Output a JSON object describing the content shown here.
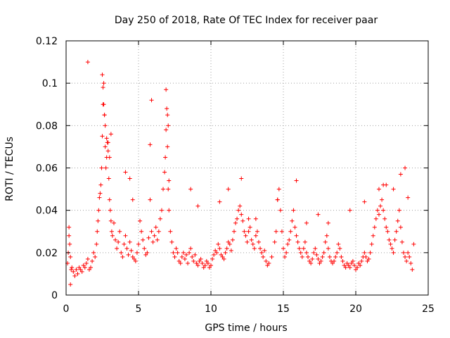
{
  "chart_data": {
    "type": "scatter",
    "title": "Day 250 of 2018, Rate Of TEC Index for receiver paar",
    "xlabel": "GPS time / hours",
    "ylabel": "ROTI / TECUs",
    "xlim": [
      0,
      25
    ],
    "ylim": [
      0,
      0.12
    ],
    "xticks": [
      0,
      5,
      10,
      15,
      20,
      25
    ],
    "xtick_labels": [
      "0",
      "5",
      "10",
      "15",
      "20",
      "25"
    ],
    "yticks": [
      0,
      0.02,
      0.04,
      0.06,
      0.08,
      0.1,
      0.12
    ],
    "ytick_labels": [
      "0",
      "0.02",
      "0.04",
      "0.06",
      "0.08",
      "0.1",
      "0.12"
    ],
    "grid": true,
    "marker": "plus",
    "color": "#ff0000",
    "series": [
      {
        "x": [
          0.1,
          0.15,
          0.2,
          0.25,
          0.3,
          0.35,
          0.4,
          0.5,
          0.6,
          0.7,
          0.8,
          0.9,
          1.0,
          1.1,
          1.2,
          1.3,
          1.4,
          1.5,
          1.6,
          1.7,
          1.8,
          1.9,
          2.0,
          2.1,
          2.15,
          2.2,
          2.25,
          2.3,
          2.35,
          2.4,
          2.45,
          2.5,
          2.55,
          2.6,
          2.65,
          2.7,
          2.75,
          2.8,
          2.85,
          2.9,
          2.95,
          3.0,
          3.05,
          3.1,
          3.15,
          3.2,
          3.3,
          3.4,
          3.5,
          3.6,
          3.7,
          3.8,
          3.9,
          4.0,
          4.1,
          4.2,
          4.3,
          4.4,
          4.5,
          4.6,
          4.7,
          4.8,
          4.9,
          5.0,
          5.1,
          5.2,
          5.3,
          5.4,
          5.5,
          5.6,
          5.7,
          5.8,
          5.9,
          6.0,
          6.1,
          6.2,
          6.3,
          6.4,
          6.5,
          6.6,
          6.7,
          6.8,
          6.85,
          6.9,
          6.95,
          7.0,
          7.05,
          7.1,
          7.2,
          7.3,
          7.4,
          7.5,
          7.6,
          7.7,
          7.8,
          7.9,
          8.0,
          8.1,
          8.2,
          8.3,
          8.4,
          8.5,
          8.6,
          8.7,
          8.8,
          8.9,
          9.0,
          9.1,
          9.2,
          9.3,
          9.4,
          9.5,
          9.6,
          9.7,
          9.8,
          9.9,
          10.0,
          10.1,
          10.2,
          10.3,
          10.4,
          10.5,
          10.6,
          10.7,
          10.8,
          10.9,
          11.0,
          11.1,
          11.2,
          11.3,
          11.4,
          11.5,
          11.6,
          11.7,
          11.8,
          11.9,
          12.0,
          12.1,
          12.2,
          12.3,
          12.4,
          12.5,
          12.6,
          12.7,
          12.8,
          12.9,
          13.0,
          13.1,
          13.2,
          13.3,
          13.4,
          13.5,
          13.6,
          13.7,
          13.8,
          13.9,
          14.0,
          14.2,
          14.4,
          14.5,
          14.6,
          14.7,
          14.8,
          14.9,
          15.0,
          15.1,
          15.2,
          15.3,
          15.4,
          15.5,
          15.6,
          15.7,
          15.8,
          15.9,
          16.0,
          16.1,
          16.2,
          16.3,
          16.4,
          16.5,
          16.6,
          16.7,
          16.8,
          16.9,
          17.0,
          17.1,
          17.2,
          17.3,
          17.4,
          17.5,
          17.6,
          17.7,
          17.8,
          17.9,
          18.0,
          18.1,
          18.2,
          18.3,
          18.4,
          18.5,
          18.6,
          18.7,
          18.8,
          18.9,
          19.0,
          19.1,
          19.2,
          19.3,
          19.4,
          19.5,
          19.6,
          19.7,
          19.8,
          19.9,
          20.0,
          20.1,
          20.2,
          20.3,
          20.4,
          20.5,
          20.6,
          20.7,
          20.8,
          20.9,
          21.0,
          21.1,
          21.2,
          21.3,
          21.4,
          21.5,
          21.6,
          21.7,
          21.8,
          21.9,
          22.0,
          22.1,
          22.2,
          22.3,
          22.4,
          22.5,
          22.6,
          22.7,
          22.8,
          22.9,
          23.0,
          23.1,
          23.2,
          23.3,
          23.4,
          23.5,
          23.6,
          23.7,
          23.8,
          23.9,
          24.0,
          0.2,
          0.3,
          1.5,
          2.5,
          2.55,
          2.6,
          2.65,
          2.7,
          2.8,
          2.9,
          3.0,
          3.1,
          5.8,
          5.9,
          6.9,
          7.0,
          7.05,
          7.1,
          12.1,
          14.6,
          15.9,
          21.9,
          22.1,
          23.1,
          23.4,
          4.1,
          4.4,
          4.6,
          8.6,
          9.1,
          10.6,
          11.2,
          12.6,
          13.1,
          16.6,
          17.4,
          18.1,
          19.6,
          20.6,
          21.6,
          22.6,
          23.6
        ],
        "y": [
          0.015,
          0.02,
          0.028,
          0.024,
          0.018,
          0.012,
          0.013,
          0.011,
          0.009,
          0.012,
          0.01,
          0.013,
          0.012,
          0.011,
          0.014,
          0.013,
          0.015,
          0.017,
          0.012,
          0.013,
          0.016,
          0.02,
          0.018,
          0.024,
          0.03,
          0.035,
          0.04,
          0.046,
          0.048,
          0.052,
          0.06,
          0.075,
          0.09,
          0.1,
          0.085,
          0.07,
          0.06,
          0.065,
          0.072,
          0.068,
          0.055,
          0.045,
          0.04,
          0.035,
          0.03,
          0.028,
          0.034,
          0.026,
          0.022,
          0.025,
          0.03,
          0.02,
          0.018,
          0.024,
          0.028,
          0.022,
          0.019,
          0.025,
          0.021,
          0.018,
          0.017,
          0.016,
          0.02,
          0.024,
          0.035,
          0.03,
          0.026,
          0.022,
          0.019,
          0.02,
          0.027,
          0.045,
          0.03,
          0.025,
          0.028,
          0.032,
          0.026,
          0.03,
          0.036,
          0.04,
          0.05,
          0.058,
          0.065,
          0.078,
          0.088,
          0.07,
          0.05,
          0.04,
          0.03,
          0.025,
          0.02,
          0.018,
          0.022,
          0.02,
          0.016,
          0.015,
          0.018,
          0.02,
          0.017,
          0.019,
          0.015,
          0.02,
          0.022,
          0.018,
          0.016,
          0.019,
          0.015,
          0.014,
          0.016,
          0.017,
          0.015,
          0.013,
          0.014,
          0.016,
          0.015,
          0.013,
          0.014,
          0.017,
          0.019,
          0.021,
          0.02,
          0.024,
          0.022,
          0.019,
          0.018,
          0.017,
          0.02,
          0.022,
          0.025,
          0.024,
          0.021,
          0.026,
          0.03,
          0.034,
          0.036,
          0.04,
          0.042,
          0.038,
          0.035,
          0.03,
          0.028,
          0.025,
          0.03,
          0.032,
          0.026,
          0.024,
          0.022,
          0.028,
          0.03,
          0.025,
          0.022,
          0.02,
          0.018,
          0.021,
          0.016,
          0.014,
          0.015,
          0.018,
          0.025,
          0.03,
          0.045,
          0.05,
          0.04,
          0.03,
          0.022,
          0.018,
          0.02,
          0.024,
          0.026,
          0.03,
          0.035,
          0.04,
          0.032,
          0.028,
          0.025,
          0.022,
          0.02,
          0.018,
          0.022,
          0.025,
          0.02,
          0.018,
          0.016,
          0.015,
          0.017,
          0.02,
          0.022,
          0.019,
          0.017,
          0.015,
          0.016,
          0.018,
          0.02,
          0.025,
          0.028,
          0.022,
          0.018,
          0.016,
          0.015,
          0.016,
          0.018,
          0.02,
          0.024,
          0.022,
          0.018,
          0.016,
          0.014,
          0.013,
          0.015,
          0.014,
          0.013,
          0.015,
          0.016,
          0.014,
          0.012,
          0.013,
          0.015,
          0.014,
          0.016,
          0.018,
          0.02,
          0.018,
          0.016,
          0.017,
          0.02,
          0.024,
          0.028,
          0.032,
          0.036,
          0.04,
          0.038,
          0.042,
          0.045,
          0.04,
          0.036,
          0.032,
          0.03,
          0.026,
          0.024,
          0.022,
          0.02,
          0.026,
          0.03,
          0.035,
          0.04,
          0.032,
          0.025,
          0.02,
          0.018,
          0.016,
          0.02,
          0.018,
          0.015,
          0.012,
          0.024,
          0.032,
          0.005,
          0.11,
          0.104,
          0.098,
          0.09,
          0.085,
          0.08,
          0.074,
          0.072,
          0.065,
          0.076,
          0.071,
          0.092,
          0.097,
          0.085,
          0.08,
          0.054,
          0.055,
          0.045,
          0.054,
          0.052,
          0.052,
          0.057,
          0.06,
          0.058,
          0.055,
          0.045,
          0.05,
          0.042,
          0.044,
          0.05,
          0.036,
          0.036,
          0.034,
          0.038,
          0.034,
          0.04,
          0.044,
          0.05,
          0.05,
          0.046
        ]
      }
    ]
  }
}
